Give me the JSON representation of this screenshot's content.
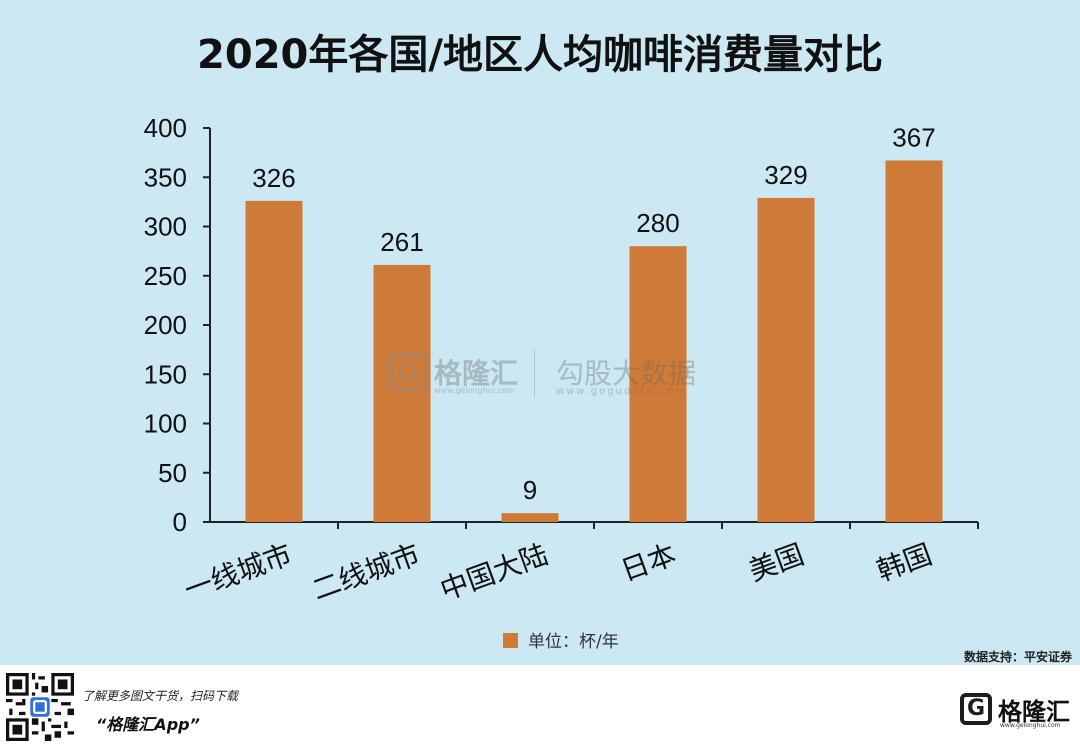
{
  "chart_data": {
    "type": "bar",
    "title": "2020年各国/地区人均咖啡消费量对比",
    "categories": [
      "一线城市",
      "二线城市",
      "中国大陆",
      "日本",
      "美国",
      "韩国"
    ],
    "values": [
      326,
      261,
      9,
      280,
      329,
      367
    ],
    "series": [
      {
        "name": "单位：杯/年",
        "values": [
          326,
          261,
          9,
          280,
          329,
          367
        ]
      }
    ],
    "yticks": [
      0,
      50,
      100,
      150,
      200,
      250,
      300,
      350,
      400
    ],
    "ylim": [
      0,
      400
    ],
    "grid": false,
    "legend_position": "bottom-center",
    "bar_color": "#cf7a36",
    "background_color": "#cbe8f3",
    "data_labels": true
  },
  "watermark": {
    "name1": "格隆汇",
    "url1": "www.gelonghui.com",
    "name2": "勾股大数据",
    "url2": "www.gogudata.com"
  },
  "source_text": "数据支持：平安证券",
  "footer": {
    "promo_text": "了解更多图文干货，扫码下载",
    "app_name": "“格隆汇App”",
    "brand_name": "格隆汇",
    "brand_url": "www.gelonghui.com",
    "logo_letter": "G"
  }
}
